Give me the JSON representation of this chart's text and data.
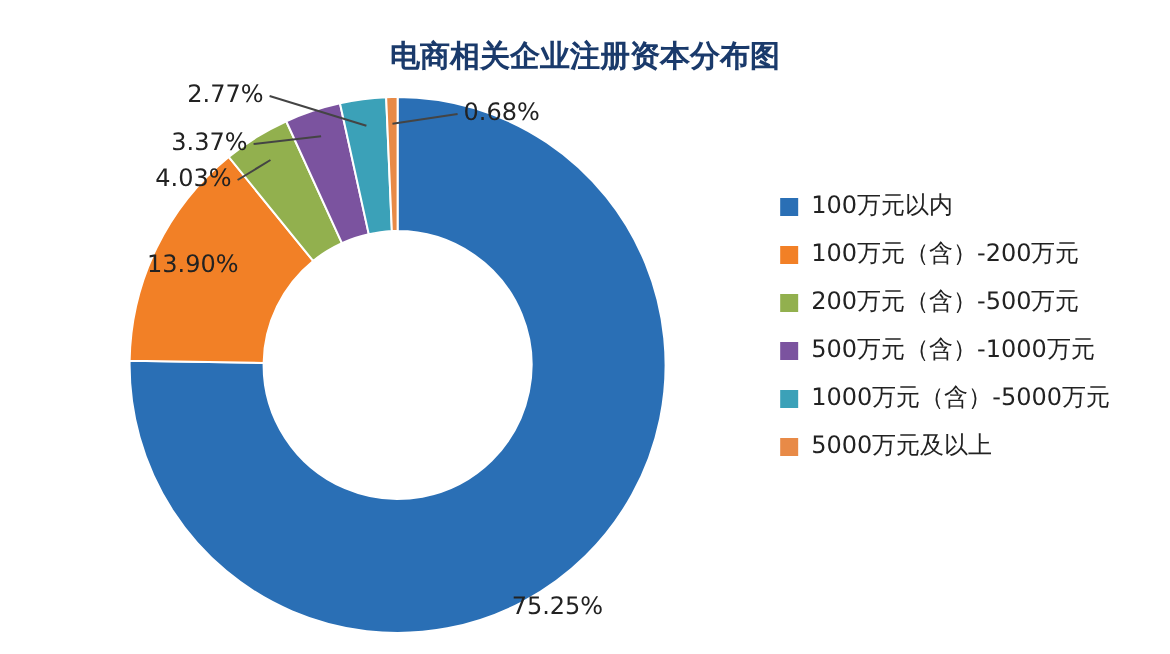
{
  "chart_data": {
    "type": "donut",
    "title": "电商相关企业注册资本分布图",
    "categories": [
      "100万元以内",
      "100万元（含）-200万元",
      "200万元（含）-500万元",
      "500万元（含）-1000万元",
      "1000万元（含）-5000万元",
      "5000万元及以上"
    ],
    "values": [
      75.25,
      13.9,
      4.03,
      3.37,
      2.77,
      0.68
    ],
    "value_labels": [
      "75.25%",
      "13.90%",
      "4.03%",
      "3.37%",
      "2.77%",
      "0.68%"
    ],
    "colors": [
      "#2a6fb5",
      "#f28026",
      "#92b04e",
      "#7b539f",
      "#3ba1b8",
      "#e88a47"
    ],
    "legend": "right"
  }
}
